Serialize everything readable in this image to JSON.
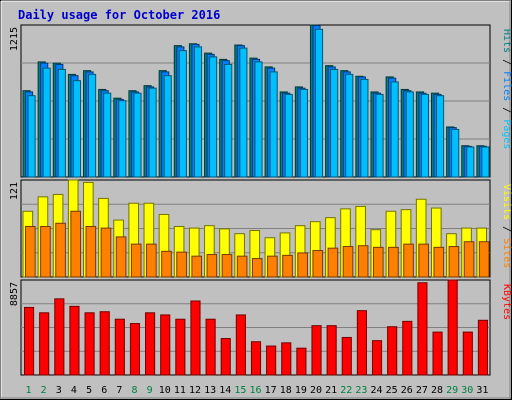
{
  "title": "Daily usage for October 2016",
  "colors": {
    "background": "#C0C0C0",
    "title": "#0000CC",
    "pages": "#00BFFF",
    "files": "#0080FF",
    "hits": "#008080",
    "sites": "#FF8000",
    "visits": "#FFFF00",
    "kbytes": "#FF0000",
    "weekend_label": "#008040",
    "weekday_label": "#000000"
  },
  "chart_data": [
    {
      "type": "bar",
      "panel": "hits-files-pages",
      "ymax_label": "1215",
      "ylim": [
        0,
        1215
      ],
      "legend": [
        {
          "name": "Pages",
          "color": "#00BFFF"
        },
        {
          "name": "Files",
          "color": "#0080FF"
        },
        {
          "name": "Hits",
          "color": "#008080"
        }
      ],
      "categories": [
        "1",
        "2",
        "3",
        "4",
        "5",
        "6",
        "7",
        "8",
        "9",
        "10",
        "11",
        "12",
        "13",
        "14",
        "15",
        "16",
        "17",
        "18",
        "19",
        "20",
        "21",
        "22",
        "23",
        "24",
        "25",
        "26",
        "27",
        "28",
        "29",
        "30",
        "31"
      ],
      "weekend": [
        1,
        2,
        8,
        9,
        15,
        16,
        22,
        23,
        29,
        30
      ],
      "series": [
        {
          "name": "Hits",
          "values": [
            690,
            920,
            910,
            820,
            850,
            700,
            630,
            690,
            730,
            850,
            1050,
            1065,
            990,
            940,
            1055,
            950,
            880,
            680,
            720,
            1215,
            890,
            850,
            805,
            680,
            800,
            700,
            680,
            670,
            400,
            250,
            250
          ]
        },
        {
          "name": "Files",
          "values": [
            680,
            910,
            900,
            810,
            840,
            690,
            620,
            680,
            720,
            840,
            1040,
            1060,
            980,
            930,
            1050,
            940,
            870,
            670,
            710,
            1210,
            880,
            840,
            800,
            670,
            790,
            690,
            670,
            660,
            395,
            245,
            245
          ]
        },
        {
          "name": "Pages",
          "values": [
            650,
            870,
            860,
            770,
            820,
            670,
            610,
            670,
            710,
            810,
            1010,
            1040,
            960,
            900,
            1030,
            920,
            840,
            660,
            700,
            1180,
            860,
            820,
            780,
            660,
            760,
            680,
            660,
            650,
            380,
            240,
            240
          ]
        }
      ]
    },
    {
      "type": "bar",
      "panel": "visits-sites",
      "ymax_label": "121",
      "ylim": [
        0,
        121
      ],
      "legend": [
        {
          "name": "Sites",
          "color": "#FF8000"
        },
        {
          "name": "Visits",
          "color": "#FFFF00"
        }
      ],
      "categories": [
        "1",
        "2",
        "3",
        "4",
        "5",
        "6",
        "7",
        "8",
        "9",
        "10",
        "11",
        "12",
        "13",
        "14",
        "15",
        "16",
        "17",
        "18",
        "19",
        "20",
        "21",
        "22",
        "23",
        "24",
        "25",
        "26",
        "27",
        "28",
        "29",
        "30",
        "31"
      ],
      "series": [
        {
          "name": "Visits",
          "values": [
            82,
            100,
            103,
            121,
            118,
            98,
            71,
            92,
            92,
            78,
            63,
            61,
            64,
            60,
            54,
            58,
            49,
            55,
            64,
            69,
            74,
            85,
            88,
            59,
            82,
            84,
            97,
            86,
            54,
            61,
            61
          ]
        },
        {
          "name": "Sites",
          "values": [
            63,
            63,
            67,
            82,
            63,
            61,
            50,
            41,
            41,
            32,
            31,
            26,
            28,
            28,
            26,
            23,
            26,
            27,
            30,
            33,
            36,
            38,
            39,
            37,
            37,
            41,
            41,
            37,
            38,
            44,
            44
          ]
        }
      ]
    },
    {
      "type": "bar",
      "panel": "kbytes",
      "ymax_label": "8857",
      "ylim": [
        0,
        8857
      ],
      "legend": [
        {
          "name": "KBytes",
          "color": "#FF0000"
        }
      ],
      "categories": [
        "1",
        "2",
        "3",
        "4",
        "5",
        "6",
        "7",
        "8",
        "9",
        "10",
        "11",
        "12",
        "13",
        "14",
        "15",
        "16",
        "17",
        "18",
        "19",
        "20",
        "21",
        "22",
        "23",
        "24",
        "25",
        "26",
        "27",
        "28",
        "29",
        "30",
        "31"
      ],
      "series": [
        {
          "name": "KBytes",
          "values": [
            6300,
            5800,
            7100,
            6400,
            5800,
            5900,
            5200,
            4800,
            5800,
            5600,
            5200,
            6900,
            5200,
            3400,
            5600,
            3100,
            2700,
            3000,
            2500,
            4600,
            4600,
            3500,
            6000,
            3200,
            4500,
            5000,
            8600,
            4000,
            8857,
            4000,
            5100
          ]
        }
      ]
    }
  ]
}
